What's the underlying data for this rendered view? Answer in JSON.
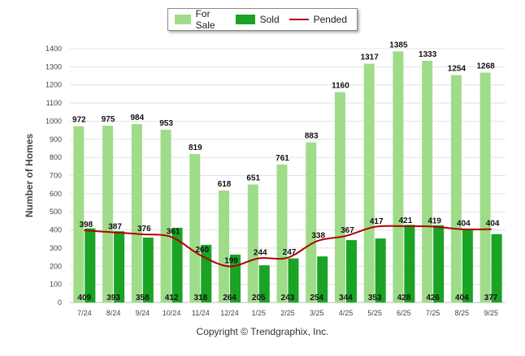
{
  "chart_data": {
    "type": "bar",
    "ylabel": "Number of Homes",
    "ylim": [
      0,
      1400
    ],
    "yticks": [
      0,
      100,
      200,
      300,
      400,
      500,
      600,
      700,
      800,
      900,
      1000,
      1100,
      1200,
      1300,
      1400
    ],
    "categories": [
      "7/24",
      "8/24",
      "9/24",
      "10/24",
      "11/24",
      "12/24",
      "1/25",
      "2/25",
      "3/25",
      "4/25",
      "5/25",
      "6/25",
      "7/25",
      "8/25",
      "9/25"
    ],
    "series": [
      {
        "name": "For Sale",
        "kind": "bar",
        "color": "#9fdc8a",
        "values": [
          972,
          975,
          984,
          953,
          819,
          618,
          651,
          761,
          883,
          1160,
          1317,
          1385,
          1333,
          1254,
          1268
        ]
      },
      {
        "name": "Sold",
        "kind": "bar",
        "color": "#1aa324",
        "values": [
          409,
          393,
          358,
          412,
          318,
          264,
          205,
          243,
          254,
          344,
          353,
          428,
          426,
          404,
          377
        ]
      },
      {
        "name": "Pended",
        "kind": "line",
        "color": "#b00000",
        "values": [
          398,
          387,
          376,
          361,
          260,
          199,
          244,
          247,
          338,
          367,
          417,
          421,
          419,
          404,
          404
        ]
      }
    ],
    "legend_position": "top-center",
    "grid": true
  },
  "footer": "Copyright © Trendgraphix, Inc."
}
